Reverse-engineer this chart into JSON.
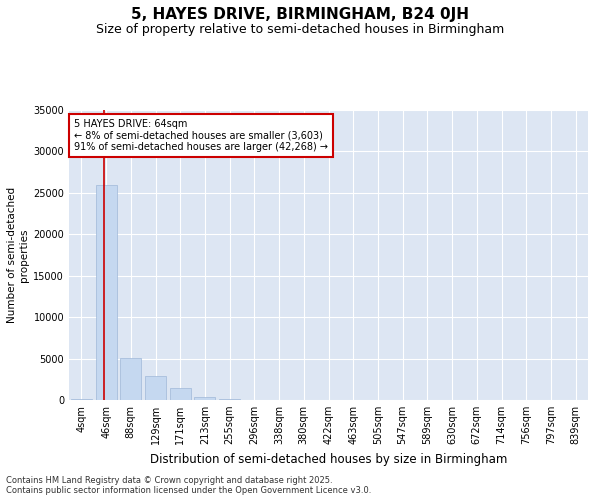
{
  "title": "5, HAYES DRIVE, BIRMINGHAM, B24 0JH",
  "subtitle": "Size of property relative to semi-detached houses in Birmingham",
  "xlabel": "Distribution of semi-detached houses by size in Birmingham",
  "ylabel": "Number of semi-detached\nproperties",
  "categories": [
    "4sqm",
    "46sqm",
    "88sqm",
    "129sqm",
    "171sqm",
    "213sqm",
    "255sqm",
    "296sqm",
    "338sqm",
    "380sqm",
    "422sqm",
    "463sqm",
    "505sqm",
    "547sqm",
    "589sqm",
    "630sqm",
    "672sqm",
    "714sqm",
    "756sqm",
    "797sqm",
    "839sqm"
  ],
  "values": [
    120,
    26000,
    5100,
    2900,
    1500,
    350,
    100,
    40,
    15,
    6,
    3,
    2,
    1,
    1,
    0,
    0,
    0,
    0,
    0,
    0,
    0
  ],
  "bar_color": "#c5d8f0",
  "bar_edge_color": "#a0b8d8",
  "vline_color": "#cc0000",
  "annotation_edge_color": "#cc0000",
  "ylim": [
    0,
    35000
  ],
  "yticks": [
    0,
    5000,
    10000,
    15000,
    20000,
    25000,
    30000,
    35000
  ],
  "background_color": "#dde6f3",
  "grid_color": "#ffffff",
  "footer": "Contains HM Land Registry data © Crown copyright and database right 2025.\nContains public sector information licensed under the Open Government Licence v3.0.",
  "title_fontsize": 11,
  "subtitle_fontsize": 9,
  "tick_fontsize": 7,
  "ylabel_fontsize": 7.5,
  "xlabel_fontsize": 8.5,
  "footer_fontsize": 6
}
